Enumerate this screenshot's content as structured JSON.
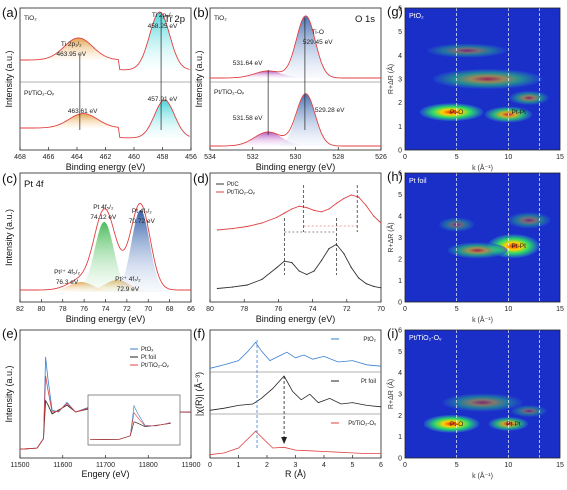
{
  "figure": {
    "panels": [
      {
        "id": "a",
        "label": "(a)",
        "title": "Ti 2p",
        "xlabel": "Binding energy (eV)",
        "ylabel": "Intensity (a.u.)",
        "xticks": [
          "468",
          "466",
          "464",
          "462",
          "460",
          "458",
          "456"
        ],
        "sample_top": "TiO₂",
        "sample_bottom": "Pt/TiO₂-Oᵥ",
        "ann": [
          "Ti 2p₁/₂",
          "463.95 eV",
          "Ti 2p₃/₂",
          "458.25 eV",
          "457.91 eV",
          "463.61 eV"
        ]
      },
      {
        "id": "b",
        "label": "(b)",
        "title": "O 1s",
        "xlabel": "Binding energy (eV)",
        "ylabel": "Intensity (a.u.)",
        "xticks": [
          "534",
          "532",
          "530",
          "528",
          "526"
        ],
        "sample_top": "TiO₂",
        "sample_bottom": "Pt/TiO₂-Oᵥ",
        "ann": [
          "531.64 eV",
          "Ti-O",
          "529.45 eV",
          "529.28 eV",
          "531.58 eV"
        ]
      },
      {
        "id": "c",
        "label": "(c)",
        "title": "Pt 4f",
        "xlabel": "Binding energy (eV)",
        "ylabel": "Intensity (a.u.)",
        "xticks": [
          "82",
          "80",
          "78",
          "76",
          "74",
          "72",
          "70",
          "68",
          "66"
        ],
        "ann": [
          "Pt 4f₅/₂",
          "74.12 eV",
          "Pt 4f₇/₂",
          "70.72 eV",
          "Pt²⁺ 4f₅/₂",
          "76.3 eV",
          "Pt²⁺ 4f₇/₂",
          "72.9 eV"
        ]
      },
      {
        "id": "d",
        "label": "(d)",
        "xlabel": "Binding energy (eV)",
        "xticks": [
          "80",
          "78",
          "76",
          "74",
          "72",
          "70"
        ],
        "legend": [
          "Pt/C",
          "Pt/TiO₂-Oᵥ"
        ]
      },
      {
        "id": "e",
        "label": "(e)",
        "xlabel": "Engery (eV)",
        "ylabel": "Intensity (a.u.)",
        "xticks": [
          "11500",
          "11600",
          "11700",
          "11800",
          "11900"
        ],
        "legend": [
          "PtOₓ",
          "Pt foil",
          "Pt/TiO₂-Oᵥ"
        ]
      },
      {
        "id": "f",
        "label": "(f)",
        "xlabel": "R (Å)",
        "ylabel": "|χ(R)| (Å⁻³)",
        "xticks": [
          "0",
          "1",
          "2",
          "3",
          "4",
          "5",
          "6"
        ],
        "legend": [
          "PtO₂",
          "Pt foil",
          "Pt/TiO₂-Oᵥ"
        ]
      },
      {
        "id": "g",
        "label": "(g)",
        "title": "PtO₂",
        "xlabel": "k (Å⁻¹)",
        "ylabel": "R+ΔR (Å)",
        "xticks": [
          "0",
          "5",
          "10",
          "15"
        ],
        "yticks": [
          "0",
          "1",
          "2",
          "3",
          "4",
          "5",
          "6"
        ],
        "marks": [
          "Pt-O",
          "Pt-Pt"
        ]
      },
      {
        "id": "h",
        "label": "(h)",
        "title": "Pt foil",
        "xlabel": "k (Å⁻¹)",
        "ylabel": "R+ΔR (Å)",
        "xticks": [
          "0",
          "5",
          "10",
          "15"
        ],
        "yticks": [
          "0",
          "1",
          "2",
          "3",
          "4",
          "5",
          "6"
        ],
        "marks": [
          "Pt-Pt"
        ]
      },
      {
        "id": "i",
        "label": "(i)",
        "title": "Pt/TiO₂-Oᵥ",
        "xlabel": "k (Å⁻¹)",
        "ylabel": "R+ΔR (Å)",
        "xticks": [
          "0",
          "5",
          "10",
          "15"
        ],
        "yticks": [
          "0",
          "1",
          "2",
          "3",
          "4",
          "5",
          "6"
        ],
        "marks": [
          "Pt-O",
          "Pt-Pt"
        ]
      }
    ]
  },
  "chart_data": [
    {
      "type": "line",
      "panel": "d",
      "xlabel": "Binding energy (eV)",
      "xlim": [
        80,
        69
      ],
      "series": [
        {
          "name": "Pt/C",
          "x": [
            80,
            79,
            78,
            77,
            76,
            75.5,
            75,
            74.5,
            74,
            73.5,
            73,
            72.5,
            72,
            71.5,
            71,
            70.5,
            70,
            69.5,
            69
          ],
          "y": [
            0.05,
            0.07,
            0.1,
            0.18,
            0.35,
            0.44,
            0.42,
            0.3,
            0.25,
            0.3,
            0.45,
            0.62,
            0.68,
            0.55,
            0.35,
            0.2,
            0.12,
            0.08,
            0.06
          ]
        },
        {
          "name": "Pt/TiO₂-Oᵥ",
          "x": [
            80,
            79,
            78,
            77,
            76,
            75.5,
            75,
            74.5,
            74,
            73.5,
            73,
            72.5,
            72,
            71.5,
            71,
            70.5,
            70,
            69.5,
            69
          ],
          "y": [
            0.5,
            0.52,
            0.55,
            0.6,
            0.68,
            0.74,
            0.8,
            0.84,
            0.82,
            0.78,
            0.76,
            0.8,
            0.88,
            0.95,
            1.0,
            0.97,
            0.85,
            0.7,
            0.6
          ]
        }
      ]
    },
    {
      "type": "line",
      "panel": "e",
      "xlabel": "Engery (eV)",
      "xlim": [
        11500,
        11900
      ],
      "series": [
        {
          "name": "PtOₓ",
          "x": [
            11500,
            11540,
            11555,
            11560,
            11565,
            11575,
            11590,
            11610,
            11630,
            11660,
            11700,
            11750,
            11800,
            11850,
            11900
          ],
          "y": [
            0.02,
            0.05,
            0.3,
            2.45,
            1.9,
            1.05,
            1.0,
            1.25,
            1.0,
            1.12,
            1.02,
            1.05,
            0.98,
            1.0,
            0.99
          ]
        },
        {
          "name": "Pt foil",
          "x": [
            11500,
            11540,
            11555,
            11560,
            11565,
            11575,
            11590,
            11610,
            11630,
            11660,
            11700,
            11750,
            11800,
            11850,
            11900
          ],
          "y": [
            0.02,
            0.05,
            0.3,
            1.3,
            1.2,
            0.95,
            1.05,
            1.18,
            1.0,
            1.08,
            1.0,
            1.03,
            0.99,
            1.0,
            1.0
          ]
        },
        {
          "name": "Pt/TiO₂-Oᵥ",
          "x": [
            11500,
            11540,
            11555,
            11560,
            11565,
            11575,
            11590,
            11610,
            11630,
            11660,
            11700,
            11750,
            11800,
            11850,
            11900
          ],
          "y": [
            0.02,
            0.05,
            0.3,
            1.95,
            1.6,
            1.0,
            1.02,
            1.22,
            1.0,
            1.1,
            1.01,
            1.04,
            0.99,
            1.0,
            1.0
          ]
        }
      ]
    },
    {
      "type": "line",
      "panel": "f",
      "xlabel": "R (Å)",
      "ylabel": "|χ(R)| (Å⁻³)",
      "xlim": [
        0,
        6
      ],
      "series": [
        {
          "name": "PtO₂",
          "x": [
            0,
            0.5,
            1,
            1.3,
            1.6,
            1.8,
            2.1,
            2.4,
            2.7,
            3,
            3.3,
            3.6,
            4,
            4.5,
            5,
            5.5,
            6
          ],
          "y": [
            0.05,
            0.3,
            0.6,
            1.2,
            1.9,
            1.3,
            0.6,
            0.9,
            1.2,
            0.8,
            1.0,
            0.7,
            0.9,
            0.5,
            0.6,
            0.3,
            0.2
          ]
        },
        {
          "name": "Pt foil",
          "x": [
            0,
            0.5,
            1,
            1.5,
            1.8,
            2.2,
            2.6,
            2.9,
            3.2,
            3.5,
            3.8,
            4.2,
            4.6,
            5,
            5.5,
            6
          ],
          "y": [
            0.05,
            0.2,
            0.4,
            0.5,
            0.9,
            1.6,
            2.5,
            1.4,
            0.8,
            1.2,
            0.6,
            0.9,
            0.5,
            0.6,
            0.4,
            0.3
          ]
        },
        {
          "name": "Pt/TiO₂-Oᵥ",
          "x": [
            0,
            0.5,
            1,
            1.3,
            1.6,
            1.9,
            2.2,
            2.6,
            3,
            3.5,
            4,
            4.5,
            5,
            5.5,
            6
          ],
          "y": [
            0.02,
            0.15,
            0.5,
            1.1,
            1.7,
            1.1,
            0.5,
            0.55,
            0.35,
            0.3,
            0.25,
            0.2,
            0.15,
            0.1,
            0.1
          ]
        }
      ]
    }
  ]
}
